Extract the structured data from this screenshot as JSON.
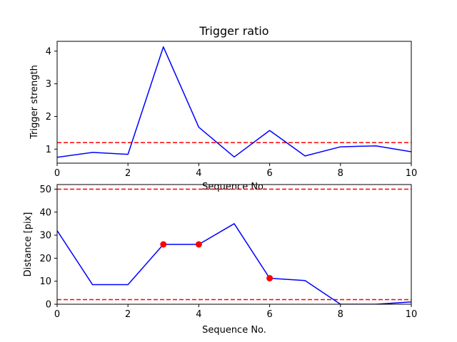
{
  "colors": {
    "series": "#0000ff",
    "threshold": "#ff0000",
    "marker": "#ff0000"
  },
  "chart_data": [
    {
      "type": "line",
      "title": "Trigger ratio",
      "xlabel": "Sequence No.",
      "ylabel": "Trigger strength",
      "xlim": [
        0,
        10
      ],
      "ylim": [
        0.57,
        4.3
      ],
      "xticks": [
        0,
        2,
        4,
        6,
        8,
        10
      ],
      "yticks": [
        1,
        2,
        3,
        4
      ],
      "grid": false,
      "series": [
        {
          "x": [
            0,
            1,
            2,
            3,
            4,
            5,
            6,
            7,
            8,
            9,
            10
          ],
          "y": [
            0.75,
            0.9,
            0.84,
            4.13,
            1.67,
            0.76,
            1.57,
            0.79,
            1.07,
            1.1,
            0.92
          ]
        }
      ],
      "hlines": [
        1.2
      ],
      "markers": []
    },
    {
      "type": "line",
      "title": "",
      "xlabel": "Sequence No.",
      "ylabel": "Distance [pix]",
      "xlim": [
        0,
        10
      ],
      "ylim": [
        0,
        52
      ],
      "xticks": [
        0,
        2,
        4,
        6,
        8,
        10
      ],
      "yticks": [
        0,
        10,
        20,
        30,
        40,
        50
      ],
      "grid": false,
      "series": [
        {
          "x": [
            0,
            1,
            2,
            3,
            4,
            5,
            6,
            7,
            8,
            9,
            10
          ],
          "y": [
            32,
            8.5,
            8.5,
            26,
            26,
            35,
            11.3,
            10.3,
            0,
            0,
            1
          ]
        }
      ],
      "hlines": [
        50,
        2
      ],
      "markers": [
        {
          "x": 3,
          "y": 26
        },
        {
          "x": 4,
          "y": 26
        },
        {
          "x": 6,
          "y": 11.3
        }
      ]
    }
  ]
}
